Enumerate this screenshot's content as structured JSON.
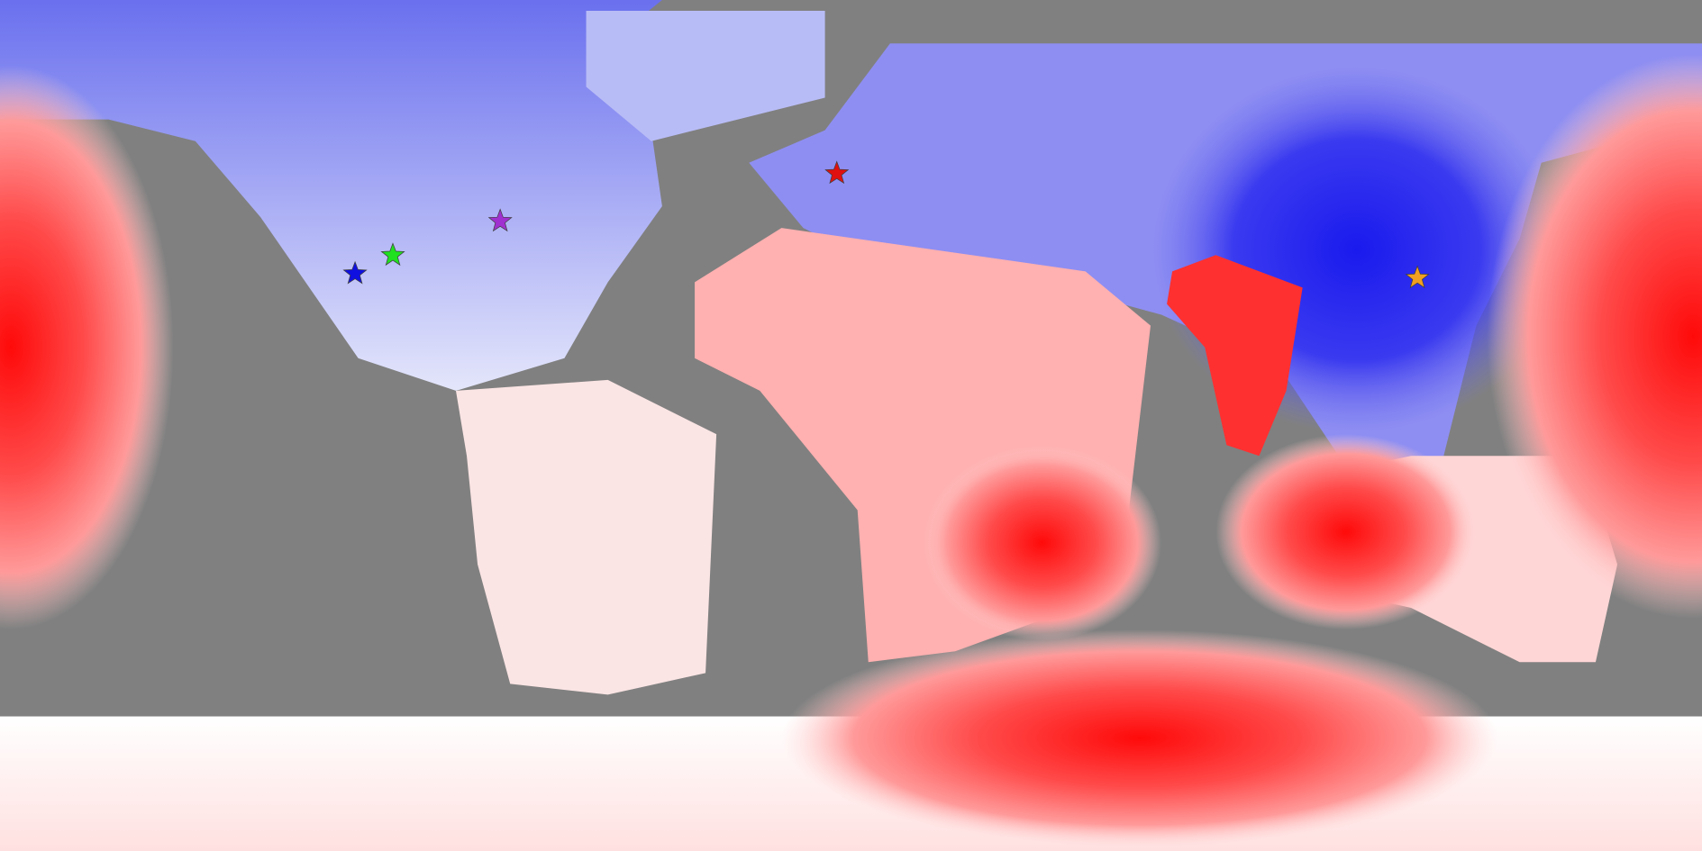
{
  "markers": [
    {
      "color": "#1010e0",
      "lon": -104.9,
      "lat": 32.1
    },
    {
      "color": "#20e020",
      "lon": -96.9,
      "lat": 36.0
    },
    {
      "color": "#a030d0",
      "lon": -74.2,
      "lat": 43.2
    },
    {
      "color": "#e01010",
      "lon": -3.0,
      "lat": 53.3
    },
    {
      "color": "#f0a020",
      "lon": 119.8,
      "lat": 31.2
    }
  ]
}
